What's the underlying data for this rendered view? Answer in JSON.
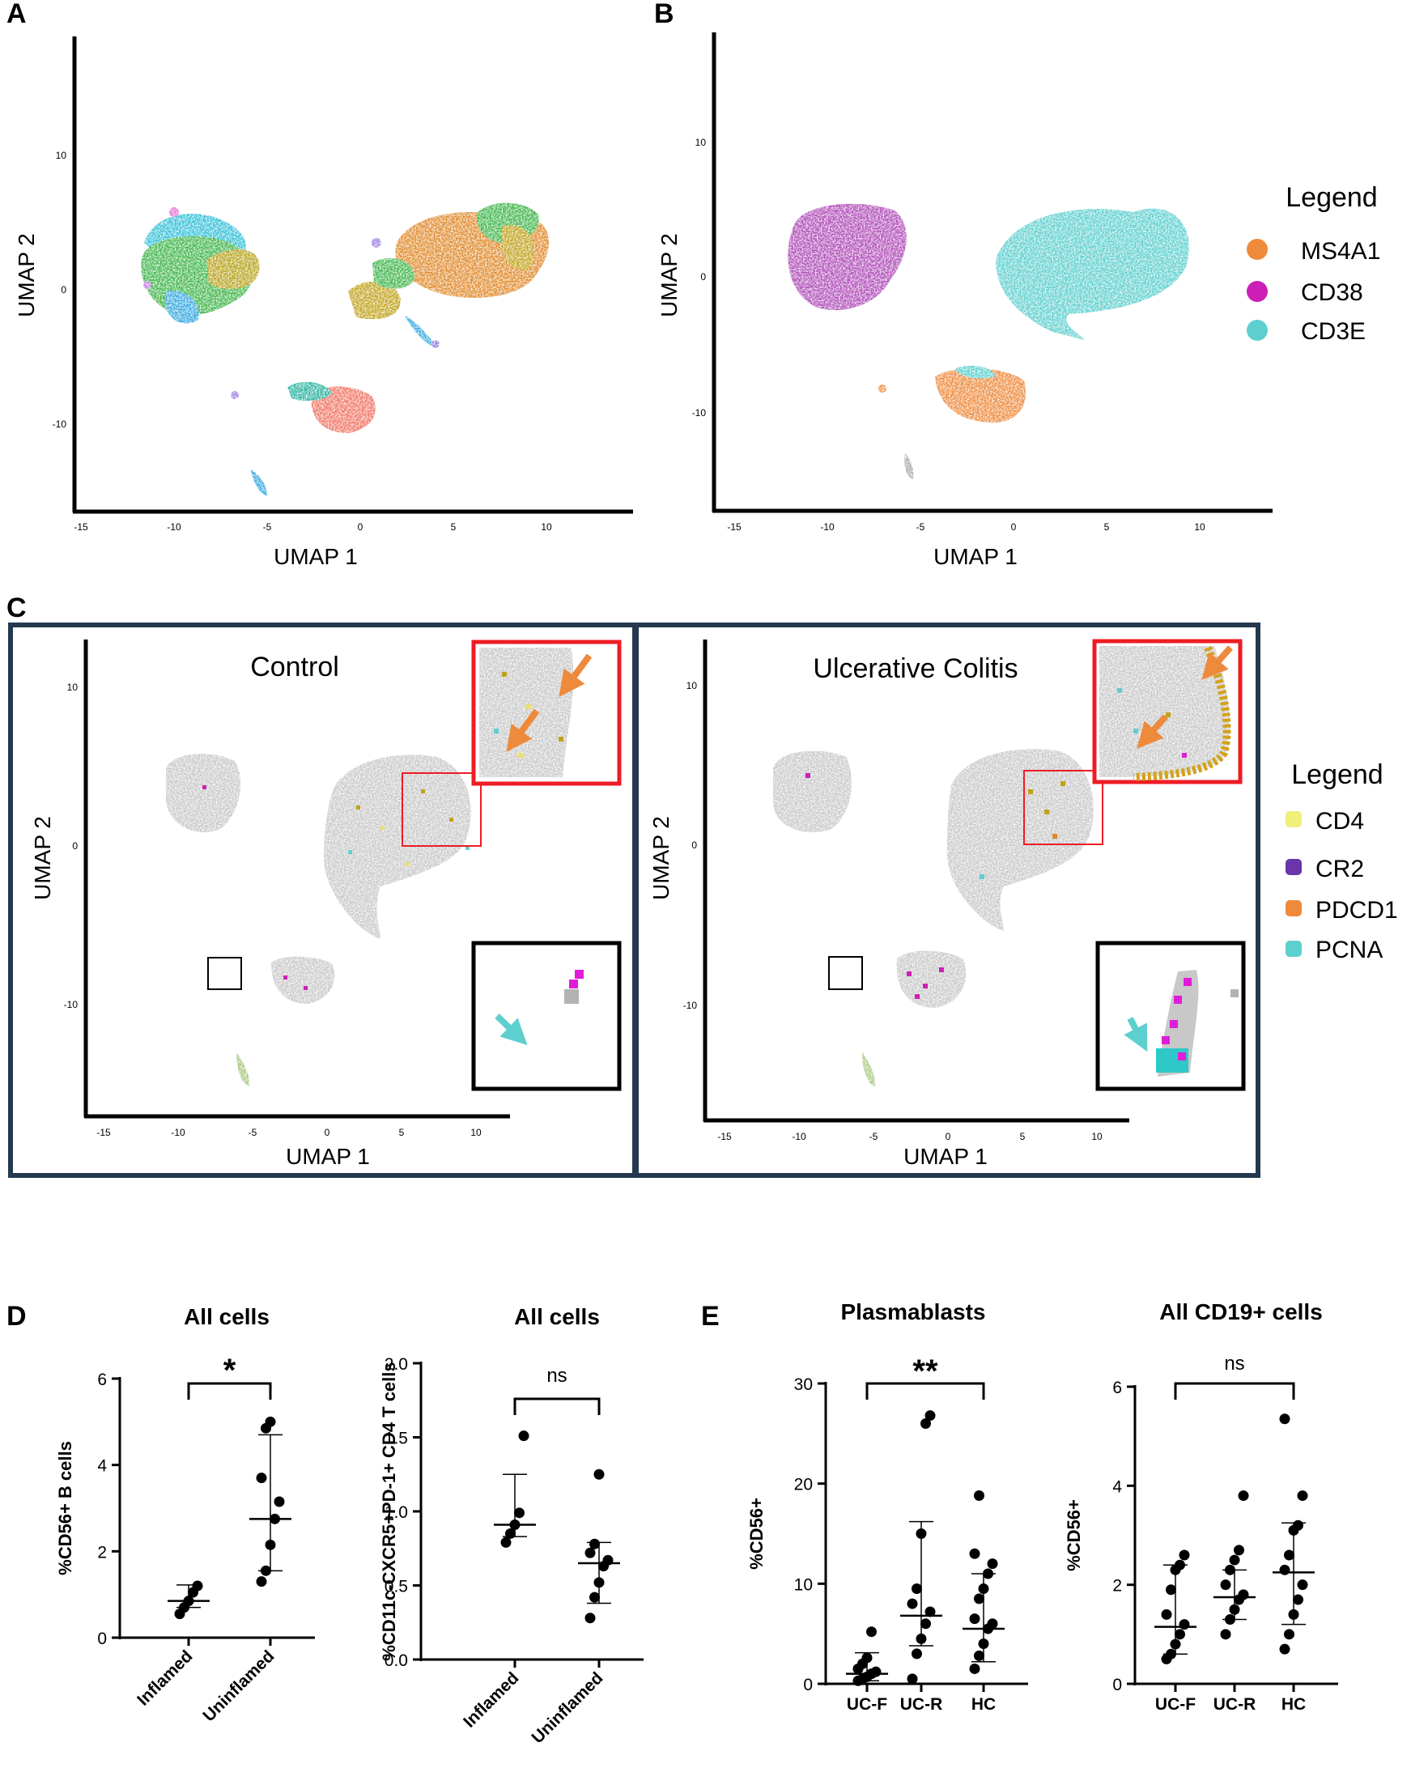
{
  "panels": {
    "A": {
      "letter": "A",
      "xlabel": "UMAP 1",
      "ylabel": "UMAP 2",
      "xticks": [
        "-15",
        "-10",
        "-5",
        "0",
        "5",
        "10"
      ],
      "yticks": [
        "10",
        "0",
        "-10"
      ]
    },
    "B": {
      "letter": "B",
      "xlabel": "UMAP 1",
      "ylabel": "UMAP 2",
      "xticks": [
        "-15",
        "-10",
        "-5",
        "0",
        "5",
        "10"
      ],
      "yticks": [
        "10",
        "0",
        "-10"
      ],
      "legend": {
        "title": "Legend",
        "items": [
          "MS4A1",
          "CD38",
          "CD3E"
        ],
        "colors": [
          "#ee8a3c",
          "#cc1fb6",
          "#5ecfcf"
        ]
      }
    },
    "C": {
      "letter": "C",
      "left": {
        "title": "Control",
        "xlabel": "UMAP 1",
        "ylabel": "UMAP 2",
        "xticks": [
          "-15",
          "-10",
          "-5",
          "0",
          "5",
          "10"
        ],
        "yticks": [
          "10",
          "0",
          "-10"
        ]
      },
      "right": {
        "title": "Ulcerative Colitis",
        "xlabel": "UMAP 1",
        "ylabel": "UMAP 2",
        "xticks": [
          "-15",
          "-10",
          "-5",
          "0",
          "5",
          "10"
        ],
        "yticks": [
          "10",
          "0",
          "-10"
        ]
      },
      "legend": {
        "title": "Legend",
        "items": [
          "CD4",
          "CR2",
          "PDCD1",
          "PCNA"
        ],
        "colors": [
          "#eef07a",
          "#6a35a8",
          "#ee8a3c",
          "#5ecfcf"
        ]
      }
    },
    "D": {
      "letter": "D"
    },
    "E": {
      "letter": "E"
    }
  },
  "colors": {
    "cluster_orange": "#e08a2c",
    "cluster_olive": "#c0a21c",
    "cluster_green": "#3fb54a",
    "cluster_teal": "#2bb3a0",
    "cluster_salmon": "#f07464",
    "cluster_blue": "#35a8e0",
    "cluster_violet": "#9b7fe0",
    "cluster_pink": "#e76ad8",
    "cell_grey": "#c8c8c8",
    "highlight_red": "#ee1c24",
    "panel_border": "#24394f",
    "arrow_orange": "#ee8a3c",
    "arrow_cyan": "#5ecfcf"
  },
  "chart_data": [
    {
      "type": "scatter",
      "panel": "D-1",
      "title": "All cells",
      "ylabel": "%CD56+ B cells",
      "categories": [
        "Inflamed",
        "Uninflamed"
      ],
      "ylim": [
        0,
        6
      ],
      "yticks": [
        "0",
        "2",
        "4",
        "6"
      ],
      "points": [
        [
          0.55,
          0.7,
          0.85,
          1.05,
          1.2
        ],
        [
          1.3,
          1.55,
          2.15,
          2.75,
          3.15,
          3.7,
          4.85,
          5.0
        ]
      ],
      "median": [
        0.85,
        2.75
      ],
      "error_low": [
        0.7,
        1.55
      ],
      "error_high": [
        1.22,
        4.7
      ],
      "significance": "*"
    },
    {
      "type": "scatter",
      "panel": "D-2",
      "title": "All cells",
      "ylabel": "%CD11c-CXCR5+PD-1+ CD4 T cells",
      "categories": [
        "Inflamed",
        "Uninflamed"
      ],
      "ylim": [
        0,
        2.0
      ],
      "yticks": [
        "0.0",
        "0.5",
        "1.0",
        "1.5",
        "2.0"
      ],
      "points": [
        [
          0.79,
          0.85,
          0.91,
          0.99,
          1.51
        ],
        [
          0.28,
          0.42,
          0.52,
          0.63,
          0.67,
          0.72,
          0.78,
          1.25
        ]
      ],
      "median": [
        0.91,
        0.65
      ],
      "error_low": [
        0.83,
        0.38
      ],
      "error_high": [
        1.25,
        0.79
      ],
      "significance": "ns"
    },
    {
      "type": "scatter",
      "panel": "E-1",
      "title": "Plasmablasts",
      "ylabel": "%CD56+",
      "categories": [
        "UC-F",
        "UC-R",
        "HC"
      ],
      "ylim": [
        0,
        30
      ],
      "yticks": [
        "0",
        "10",
        "20",
        "30"
      ],
      "points": [
        [
          0.3,
          0.5,
          0.7,
          1.0,
          1.2,
          1.5,
          2.0,
          2.6,
          5.2
        ],
        [
          0.5,
          3.0,
          4.5,
          6.0,
          7.2,
          8.0,
          9.5,
          15.0,
          26.0,
          26.8
        ],
        [
          1.5,
          2.8,
          4.0,
          5.5,
          6.0,
          6.5,
          8.5,
          9.5,
          11.0,
          12.0,
          13.0,
          18.8
        ]
      ],
      "median": [
        1.0,
        6.8,
        5.5
      ],
      "error_low": [
        0.3,
        3.8,
        2.2
      ],
      "error_high": [
        3.1,
        16.2,
        11.0
      ],
      "significance": "**"
    },
    {
      "type": "scatter",
      "panel": "E-2",
      "title": "All CD19+ cells",
      "ylabel": "%CD56+",
      "categories": [
        "UC-F",
        "UC-R",
        "HC"
      ],
      "ylim": [
        0,
        6
      ],
      "yticks": [
        "0",
        "2",
        "4",
        "6"
      ],
      "points": [
        [
          0.5,
          0.6,
          0.8,
          1.0,
          1.2,
          1.4,
          1.9,
          2.3,
          2.4,
          2.6
        ],
        [
          1.0,
          1.3,
          1.5,
          1.7,
          1.8,
          2.0,
          2.3,
          2.5,
          2.7,
          3.8
        ],
        [
          0.7,
          1.0,
          1.4,
          1.7,
          2.0,
          2.3,
          2.6,
          3.1,
          3.2,
          3.8,
          5.35
        ]
      ],
      "median": [
        1.15,
        1.75,
        2.25
      ],
      "error_low": [
        0.6,
        1.3,
        1.2
      ],
      "error_high": [
        2.4,
        2.3,
        3.25
      ],
      "significance": "ns"
    }
  ]
}
